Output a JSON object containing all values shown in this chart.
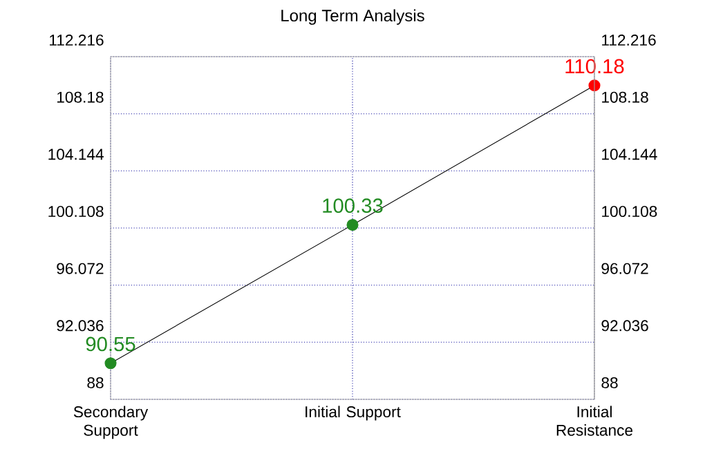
{
  "chart_data": {
    "type": "line",
    "title": "Long Term Analysis",
    "categories": [
      "Secondary Support",
      "Initial Support",
      "Initial Resistance"
    ],
    "series": [
      {
        "color": "#000000",
        "colors": [
          "#228b22",
          "#228b22",
          "#ff0000"
        ],
        "values": [
          90.55,
          100.33,
          110.18
        ]
      }
    ],
    "ylim": [
      88,
      112.216
    ],
    "yticks": [
      88,
      92.036,
      96.072,
      100.108,
      104.144,
      108.18,
      112.216
    ],
    "y2lim": [
      88,
      112.216
    ],
    "y2ticks": [
      88,
      92.036,
      96.072,
      100.108,
      104.144,
      108.18,
      112.216
    ],
    "grid": true,
    "marker": "circle",
    "line_style": "solid",
    "data_labels": true,
    "legend": false
  }
}
